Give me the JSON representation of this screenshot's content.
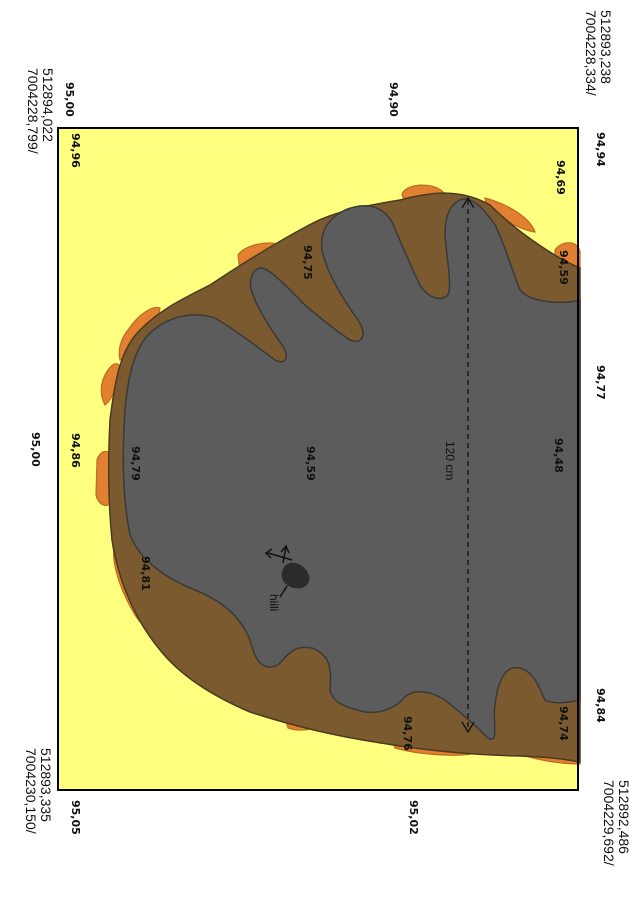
{
  "corners": {
    "top_right": [
      "7004228,334/",
      "512893,238"
    ],
    "top_left": [
      "7004228,799/",
      "512894,022"
    ],
    "bottom_left": [
      "7004230,150/",
      "512893,335"
    ],
    "bottom_right": [
      "7004229,692/",
      "512892,486"
    ]
  },
  "border_elevations": {
    "top_left": "95,00",
    "top_mid": "94,90",
    "top_right": "94,94",
    "mid_left": "95,00",
    "mid_right": "94,77",
    "bottom_left": "95,05",
    "bottom_mid": "95,02",
    "bottom_right": "94,84"
  },
  "spot_elevations": {
    "e1": "94,96",
    "e2": "94,69",
    "e3": "94,59",
    "e4": "94,75",
    "e5": "94,86",
    "e6": "94,79",
    "e7": "94,59",
    "e8": "94,48",
    "e9": "94,81",
    "e10": "94,76",
    "e11": "94,74"
  },
  "measurement": "120 cm",
  "feature_label": "hiili",
  "colors": {
    "background": "#ffff80",
    "feature_dark": "#5c5c5c",
    "feature_outer": "#7a5a2e",
    "patches": "#e07a2a",
    "frame": "#000000"
  }
}
